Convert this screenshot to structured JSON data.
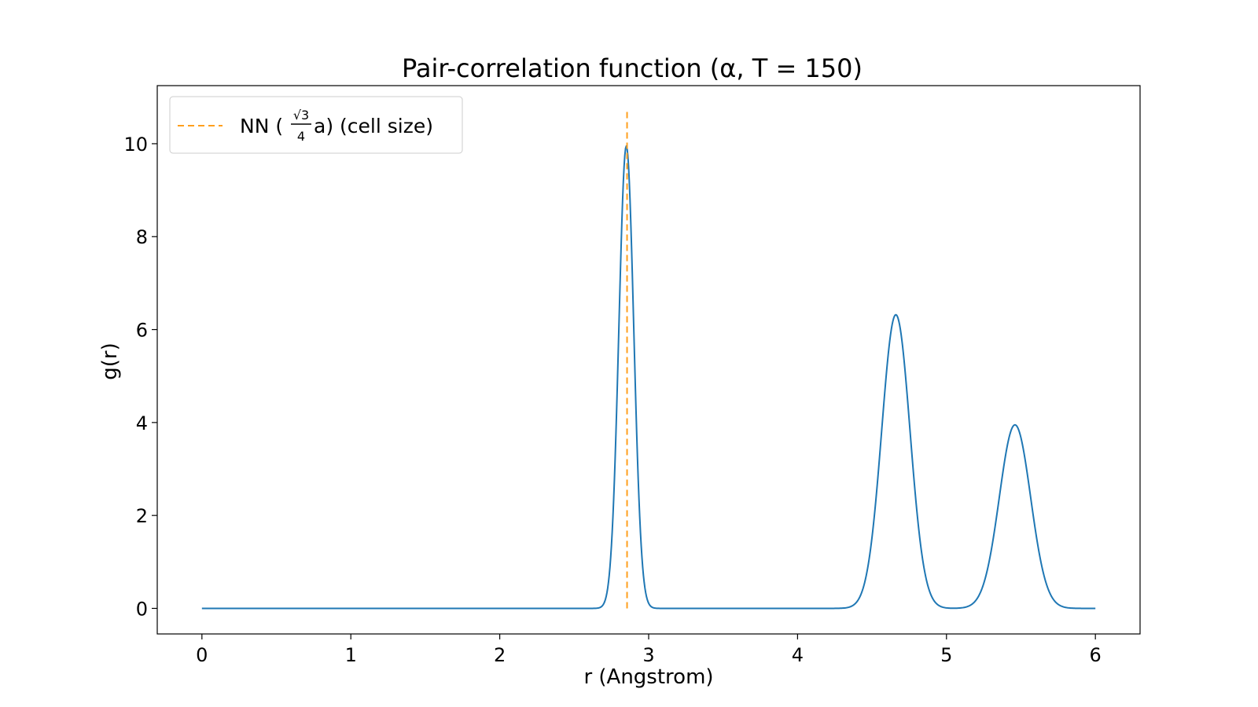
{
  "chart_data": {
    "type": "line",
    "title": "Pair-correlation function (α, T = 150)",
    "xlabel": "r (Angstrom)",
    "ylabel": "g(r)",
    "xlim": [
      -0.3,
      6.3
    ],
    "ylim": [
      -0.55,
      11.25
    ],
    "xticks": [
      0,
      1,
      2,
      3,
      4,
      5,
      6
    ],
    "yticks": [
      0,
      2,
      4,
      6,
      8,
      10
    ],
    "xtick_labels": [
      "0",
      "1",
      "2",
      "3",
      "4",
      "5",
      "6"
    ],
    "ytick_labels": [
      "0",
      "2",
      "4",
      "6",
      "8",
      "10"
    ],
    "grid": false,
    "legend_position": "top-left",
    "series": [
      {
        "color": "#1f77b4",
        "style": "solid",
        "peaks": [
          {
            "center": 2.85,
            "height": 9.95,
            "width": 0.05
          },
          {
            "center": 4.66,
            "height": 6.32,
            "width": 0.095
          },
          {
            "center": 5.46,
            "height": 3.95,
            "width": 0.105
          }
        ],
        "x": [
          0,
          0.5,
          1,
          1.5,
          2,
          2.5,
          2.6,
          2.7,
          2.75,
          2.8,
          2.85,
          2.9,
          2.95,
          3.0,
          3.1,
          3.5,
          4.0,
          4.3,
          4.4,
          4.5,
          4.6,
          4.66,
          4.7,
          4.8,
          4.9,
          5.0,
          5.05,
          5.1,
          5.2,
          5.3,
          5.4,
          5.46,
          5.5,
          5.6,
          5.7,
          5.8,
          5.9,
          6.0
        ],
        "y": [
          0,
          0,
          0,
          0,
          0,
          0,
          0.01,
          0.5,
          1.4,
          6.0,
          9.95,
          6.0,
          1.4,
          0.25,
          0.0,
          0.0,
          0.0,
          0.2,
          0.7,
          2.4,
          5.6,
          6.32,
          6.1,
          3.5,
          1.1,
          0.25,
          0.1,
          0.12,
          0.55,
          1.8,
          3.5,
          3.95,
          3.75,
          2.4,
          0.9,
          0.25,
          0.05,
          0.02
        ]
      },
      {
        "name": "NN ($\\frac{\\sqrt{3}}{4}$ a) (cell size)",
        "color": "#ff9f1c",
        "style": "dashed",
        "type": "vline",
        "x": [
          2.855,
          2.855
        ],
        "y": [
          0,
          10.7
        ]
      }
    ],
    "legend": {
      "prefix": "NN (",
      "frac_num": "√3",
      "frac_den": "4",
      "suffix": " a) (cell size)"
    }
  }
}
